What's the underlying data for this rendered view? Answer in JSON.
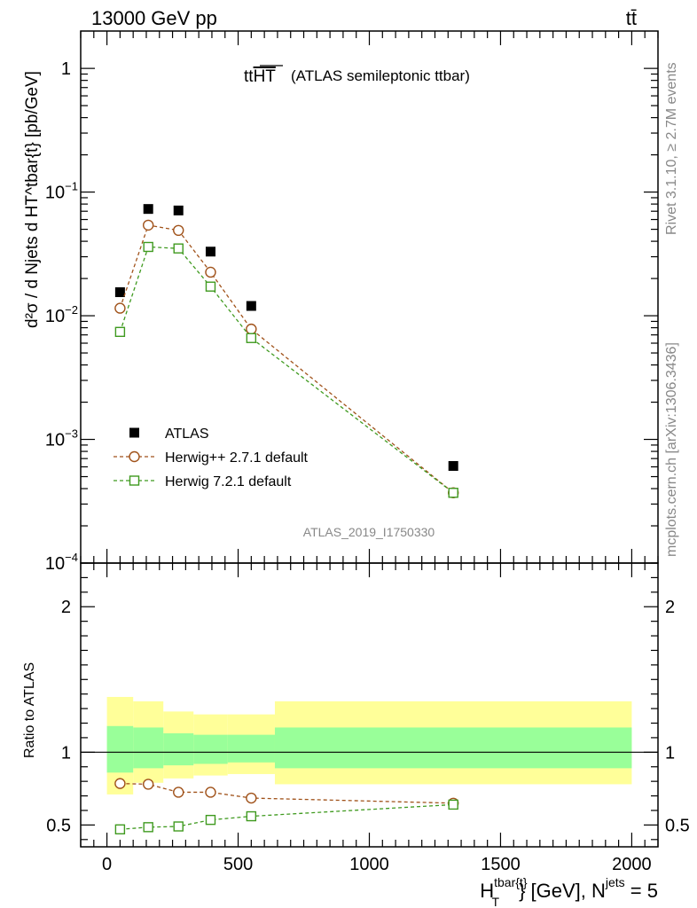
{
  "header": {
    "energy": "13000 GeV pp",
    "process": "tt̄"
  },
  "side": {
    "rivet": "Rivet 3.1.10, ≥ 2.7M events",
    "site": "mcplots.cern.ch [arXiv:1306.3436]"
  },
  "chart_data": [
    {
      "type": "scatter",
      "title_main": "tt",
      "title_over": "HT",
      "title_rest": "(ATLAS semileptonic ttbar)",
      "analysis": "ATLAS_2019_I1750330",
      "ylabel": "d²σ / d Njets d HT^tbar{t} [pb/GeV]",
      "yscale": "log",
      "xlim": [
        -100,
        2100
      ],
      "ylim": [
        0.0001,
        1.7
      ],
      "yticks": [
        {
          "v": 1,
          "base": "1",
          "exp": ""
        },
        {
          "v": 0.1,
          "base": "10",
          "exp": "−1"
        },
        {
          "v": 0.01,
          "base": "10",
          "exp": "−2"
        },
        {
          "v": 0.001,
          "base": "10",
          "exp": "−3"
        },
        {
          "v": 0.0001,
          "base": "10",
          "exp": "−4"
        }
      ],
      "x": [
        50,
        157.5,
        272.5,
        395,
        550,
        1320
      ],
      "bins": [
        [
          0,
          100
        ],
        [
          100,
          215
        ],
        [
          215,
          330
        ],
        [
          330,
          460
        ],
        [
          460,
          640
        ],
        [
          640,
          2000
        ]
      ],
      "series": [
        {
          "name": "ATLAS",
          "color": "#000000",
          "marker": "filled-square",
          "values": [
            0.0155,
            0.073,
            0.071,
            0.033,
            0.012,
            0.00061
          ]
        },
        {
          "name": "Herwig++ 2.7.1 default",
          "color": "#a0521a",
          "marker": "open-circle",
          "values": [
            0.0115,
            0.054,
            0.049,
            0.0225,
            0.0078,
            0.00037
          ]
        },
        {
          "name": "Herwig 7.2.1 default",
          "color": "#3f9a1f",
          "marker": "open-square",
          "values": [
            0.0074,
            0.036,
            0.035,
            0.0172,
            0.0066,
            0.00037
          ]
        }
      ]
    },
    {
      "type": "scatter",
      "ylabel": "Ratio to ATLAS",
      "xlabel_main": "H",
      "xlabel_sup": "tbar{t}",
      "xlabel_sub": "T",
      "xlabel_mid": "} [GeV], N",
      "xlabel_sup2": "jets",
      "xlabel_end": " = 5",
      "xlim": [
        -100,
        2100
      ],
      "ylim": [
        0.35,
        2.3
      ],
      "yticks": [
        "0.5",
        "1",
        "2"
      ],
      "xticks": [
        "0",
        "500",
        "1000",
        "1500",
        "2000"
      ],
      "band_inner": [
        [
          0.86,
          1.18
        ],
        [
          0.89,
          1.17
        ],
        [
          0.91,
          1.13
        ],
        [
          0.92,
          1.12
        ],
        [
          0.93,
          1.12
        ],
        [
          0.89,
          1.17
        ]
      ],
      "band_outer": [
        [
          0.71,
          1.38
        ],
        [
          0.79,
          1.35
        ],
        [
          0.82,
          1.28
        ],
        [
          0.84,
          1.26
        ],
        [
          0.85,
          1.26
        ],
        [
          0.78,
          1.35
        ]
      ],
      "bins": [
        [
          0,
          100
        ],
        [
          100,
          215
        ],
        [
          215,
          330
        ],
        [
          330,
          460
        ],
        [
          460,
          640
        ],
        [
          640,
          2000
        ]
      ],
      "x": [
        50,
        157.5,
        272.5,
        395,
        550,
        1320
      ],
      "series": [
        {
          "name": "Herwig++ 2.7.1 default",
          "color": "#a0521a",
          "marker": "open-circle",
          "values": [
            0.785,
            0.78,
            0.725,
            0.725,
            0.685,
            0.65
          ]
        },
        {
          "name": "Herwig 7.2.1 default",
          "color": "#3f9a1f",
          "marker": "open-square",
          "values": [
            0.47,
            0.485,
            0.49,
            0.535,
            0.56,
            0.64
          ]
        }
      ]
    }
  ]
}
